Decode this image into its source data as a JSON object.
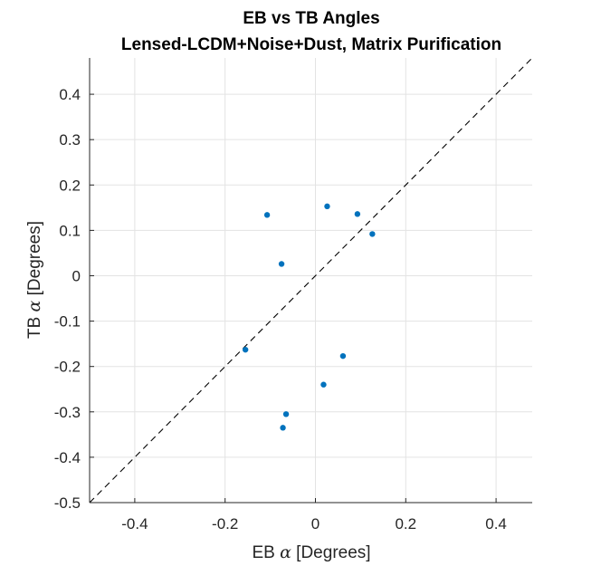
{
  "chart_data": {
    "type": "scatter",
    "title": "EB vs TB Angles",
    "subtitle": "Lensed-LCDM+Noise+Dust, Matrix Purification",
    "xlabel": {
      "prefix": "EB ",
      "symbol": "α",
      "suffix": " [Degrees]"
    },
    "ylabel": {
      "prefix": "TB ",
      "symbol": "α",
      "suffix": " [Degrees]"
    },
    "xlim": [
      -0.5,
      0.48
    ],
    "ylim": [
      -0.5,
      0.48
    ],
    "xticks": [
      -0.4,
      -0.2,
      0,
      0.2,
      0.4
    ],
    "xtick_labels": [
      "-0.4",
      "-0.2",
      "0",
      "0.2",
      "0.4"
    ],
    "yticks": [
      -0.5,
      -0.4,
      -0.3,
      -0.2,
      -0.1,
      0,
      0.1,
      0.2,
      0.3,
      0.4
    ],
    "ytick_labels": [
      "-0.5",
      "-0.4",
      "-0.3",
      "-0.2",
      "-0.1",
      "0",
      "0.1",
      "0.2",
      "0.3",
      "0.4"
    ],
    "grid": true,
    "reference_line": "y = x (dashed)",
    "marker_color": "#0072BD",
    "series": [
      {
        "name": "angles",
        "x": [
          -0.107,
          0.026,
          0.093,
          0.126,
          -0.075,
          -0.155,
          0.061,
          0.018,
          -0.065,
          -0.072
        ],
        "y": [
          0.134,
          0.153,
          0.136,
          0.092,
          0.026,
          -0.163,
          -0.177,
          -0.24,
          -0.305,
          -0.335
        ]
      }
    ]
  }
}
